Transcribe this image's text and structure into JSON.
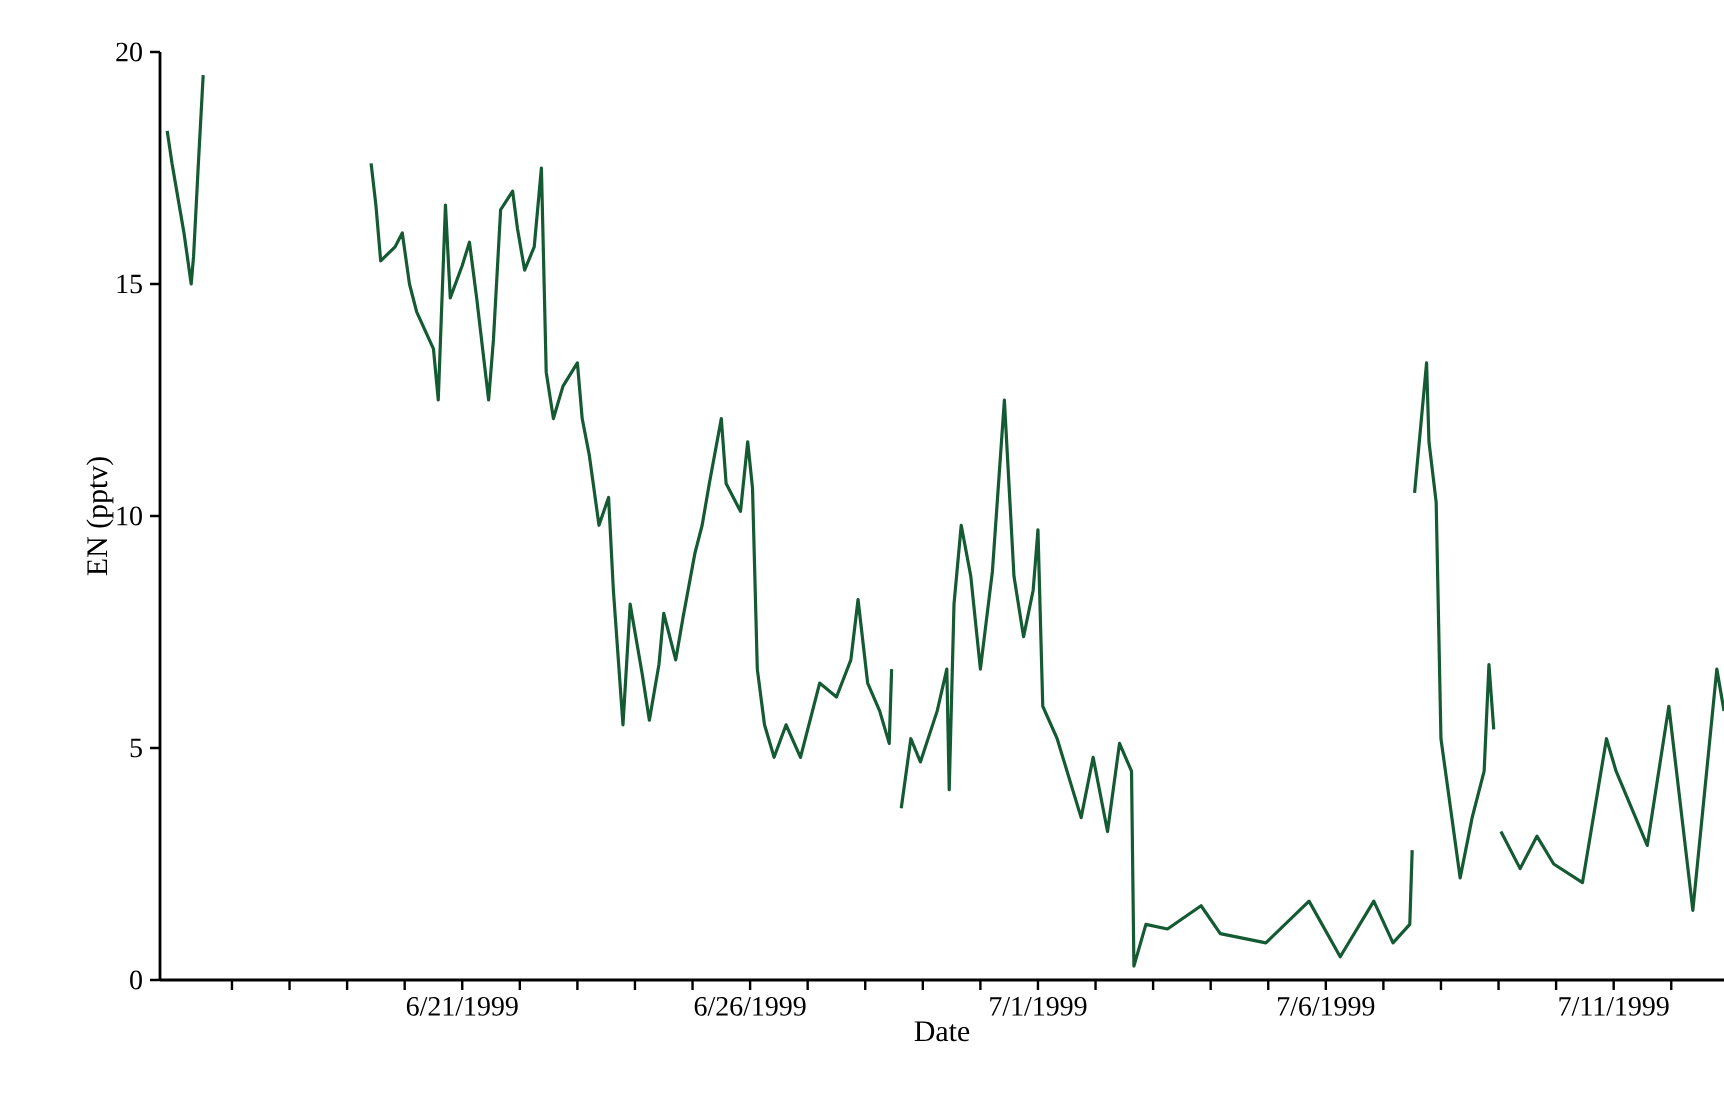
{
  "chart_data": {
    "type": "line",
    "xlabel": "Date",
    "ylabel": "EN (pptv)",
    "xlim": [
      "1999-06-15T18:00",
      "1999-07-12T22:00"
    ],
    "ylim": [
      0,
      20
    ],
    "yticks": [
      0,
      5,
      10,
      15,
      20
    ],
    "xticks": [
      {
        "value": "1999-06-17",
        "label": null
      },
      {
        "value": "1999-06-18",
        "label": null
      },
      {
        "value": "1999-06-19",
        "label": null
      },
      {
        "value": "1999-06-20",
        "label": null
      },
      {
        "value": "1999-06-21",
        "label": "6/21/1999"
      },
      {
        "value": "1999-06-22",
        "label": null
      },
      {
        "value": "1999-06-23",
        "label": null
      },
      {
        "value": "1999-06-24",
        "label": null
      },
      {
        "value": "1999-06-25",
        "label": null
      },
      {
        "value": "1999-06-26",
        "label": "6/26/1999"
      },
      {
        "value": "1999-06-27",
        "label": null
      },
      {
        "value": "1999-06-28",
        "label": null
      },
      {
        "value": "1999-06-29",
        "label": null
      },
      {
        "value": "1999-06-30",
        "label": null
      },
      {
        "value": "1999-07-01",
        "label": "7/1/1999"
      },
      {
        "value": "1999-07-02",
        "label": null
      },
      {
        "value": "1999-07-03",
        "label": null
      },
      {
        "value": "1999-07-04",
        "label": null
      },
      {
        "value": "1999-07-05",
        "label": null
      },
      {
        "value": "1999-07-06",
        "label": "7/6/1999"
      },
      {
        "value": "1999-07-07",
        "label": null
      },
      {
        "value": "1999-07-08",
        "label": null
      },
      {
        "value": "1999-07-09",
        "label": null
      },
      {
        "value": "1999-07-10",
        "label": null
      },
      {
        "value": "1999-07-11",
        "label": "7/11/1999"
      },
      {
        "value": "1999-07-12",
        "label": null
      }
    ],
    "x": [
      "1999-06-15T21:00",
      "1999-06-15T23:00",
      "1999-06-16T02:00",
      "1999-06-16T04:00",
      "1999-06-16T07:00",
      "1999-06-16T08:00",
      "1999-06-16T10:00",
      "1999-06-16T12:00",
      "1999-06-17T12:00",
      "1999-06-19T10:00",
      "1999-06-19T12:00",
      "1999-06-19T14:00",
      "1999-06-19T20:00",
      "1999-06-19T23:00",
      "1999-06-20T02:00",
      "1999-06-20T05:00",
      "1999-06-20T12:00",
      "1999-06-20T14:00",
      "1999-06-20T17:00",
      "1999-06-20T19:00",
      "1999-06-21T00:00",
      "1999-06-21T03:00",
      "1999-06-21T06:00",
      "1999-06-21T11:00",
      "1999-06-21T13:00",
      "1999-06-21T16:00",
      "1999-06-21T21:00",
      "1999-06-21T23:00",
      "1999-06-22T02:00",
      "1999-06-22T06:00",
      "1999-06-22T09:00",
      "1999-06-22T11:00",
      "1999-06-22T14:00",
      "1999-06-22T18:00",
      "1999-06-23T00:00",
      "1999-06-23T02:00",
      "1999-06-23T05:00",
      "1999-06-23T09:00",
      "1999-06-23T13:00",
      "1999-06-23T15:00",
      "1999-06-23T19:00",
      "1999-06-23T22:00",
      "1999-06-24T03:00",
      "1999-06-24T06:00",
      "1999-06-24T10:00",
      "1999-06-24T12:00",
      "1999-06-24T17:00",
      "1999-06-24T20:00",
      "1999-06-25T01:00",
      "1999-06-25T04:00",
      "1999-06-25T07:00",
      "1999-06-25T12:00",
      "1999-06-25T14:00",
      "1999-06-25T20:00",
      "1999-06-25T23:00",
      "1999-06-26T01:00",
      "1999-06-26T03:00",
      "1999-06-26T06:00",
      "1999-06-26T10:00",
      "1999-06-26T15:00",
      "1999-06-26T21:00",
      "1999-06-27T05:00",
      "1999-06-27T12:00",
      "1999-06-27T18:00",
      "1999-06-27T21:00",
      "1999-06-28T01:00",
      "1999-06-28T06:00",
      "1999-06-28T10:00",
      "1999-06-28T11:00",
      "1999-06-28T13:00",
      "1999-06-28T15:00",
      "1999-06-28T19:00",
      "1999-06-28T23:00",
      "1999-06-29T06:00",
      "1999-06-29T10:00",
      "1999-06-29T11:00",
      "1999-06-29T13:00",
      "1999-06-29T16:00",
      "1999-06-29T20:00",
      "1999-06-30T00:00",
      "1999-06-30T05:00",
      "1999-06-30T10:00",
      "1999-06-30T14:00",
      "1999-06-30T18:00",
      "1999-06-30T22:00",
      "1999-07-01T00:00",
      "1999-07-01T02:00",
      "1999-07-01T08:00",
      "1999-07-01T18:00",
      "1999-07-01T23:00",
      "1999-07-02T05:00",
      "1999-07-02T10:00",
      "1999-07-02T15:00",
      "1999-07-02T16:00",
      "1999-07-02T21:00",
      "1999-07-03T06:00",
      "1999-07-03T20:00",
      "1999-07-04T04:00",
      "1999-07-04T23:00",
      "1999-07-05T17:00",
      "1999-07-06T06:00",
      "1999-07-06T20:00",
      "1999-07-07T04:00",
      "1999-07-07T11:00",
      "1999-07-07T12:00",
      "1999-07-07T12:30",
      "1999-07-07T13:00",
      "1999-07-07T18:00",
      "1999-07-07T19:00",
      "1999-07-07T22:00",
      "1999-07-08T00:00",
      "1999-07-08T08:00",
      "1999-07-08T13:00",
      "1999-07-08T18:00",
      "1999-07-08T20:00",
      "1999-07-08T22:00",
      "1999-07-08T23:00",
      "1999-07-09T01:00",
      "1999-07-09T09:00",
      "1999-07-09T16:00",
      "1999-07-09T23:00",
      "1999-07-10T11:00",
      "1999-07-10T21:00",
      "1999-07-11T01:00",
      "1999-07-11T14:00",
      "1999-07-11T23:00",
      "1999-07-12T09:00",
      "1999-07-12T19:00",
      "1999-07-12T22:00"
    ],
    "series": [
      {
        "color": "#145a32",
        "values": [
          18.3,
          17.6,
          16.7,
          16.1,
          15.0,
          15.6,
          17.6,
          19.5,
          null,
          17.6,
          16.7,
          15.5,
          15.8,
          16.1,
          15.0,
          14.4,
          13.6,
          12.5,
          16.7,
          14.7,
          15.4,
          15.9,
          14.7,
          12.5,
          13.8,
          16.6,
          17.0,
          16.2,
          15.3,
          15.8,
          17.5,
          13.1,
          12.1,
          12.8,
          13.3,
          12.1,
          11.3,
          9.8,
          10.4,
          8.4,
          5.5,
          8.1,
          6.6,
          5.6,
          6.8,
          7.9,
          6.9,
          7.8,
          9.2,
          9.8,
          10.7,
          12.1,
          10.7,
          10.1,
          11.6,
          10.6,
          6.7,
          5.5,
          4.8,
          5.5,
          4.8,
          6.4,
          6.1,
          6.9,
          8.2,
          6.4,
          5.8,
          5.1,
          6.7,
          null,
          3.7,
          5.2,
          4.7,
          5.8,
          6.7,
          4.1,
          8.1,
          9.8,
          8.7,
          6.7,
          8.8,
          12.5,
          8.7,
          7.4,
          8.4,
          9.7,
          5.9,
          5.2,
          3.5,
          4.8,
          3.2,
          5.1,
          4.5,
          0.3,
          1.2,
          1.1,
          1.6,
          1.0,
          0.8,
          1.7,
          0.5,
          1.7,
          0.8,
          1.2,
          2.8,
          null,
          10.5,
          13.3,
          11.6,
          10.3,
          5.2,
          2.2,
          3.5,
          4.5,
          6.8,
          5.4,
          null,
          3.2,
          2.4,
          3.1,
          2.5,
          2.1,
          5.2,
          4.5,
          2.9,
          5.9,
          1.5,
          6.7,
          5.8
        ]
      }
    ]
  }
}
